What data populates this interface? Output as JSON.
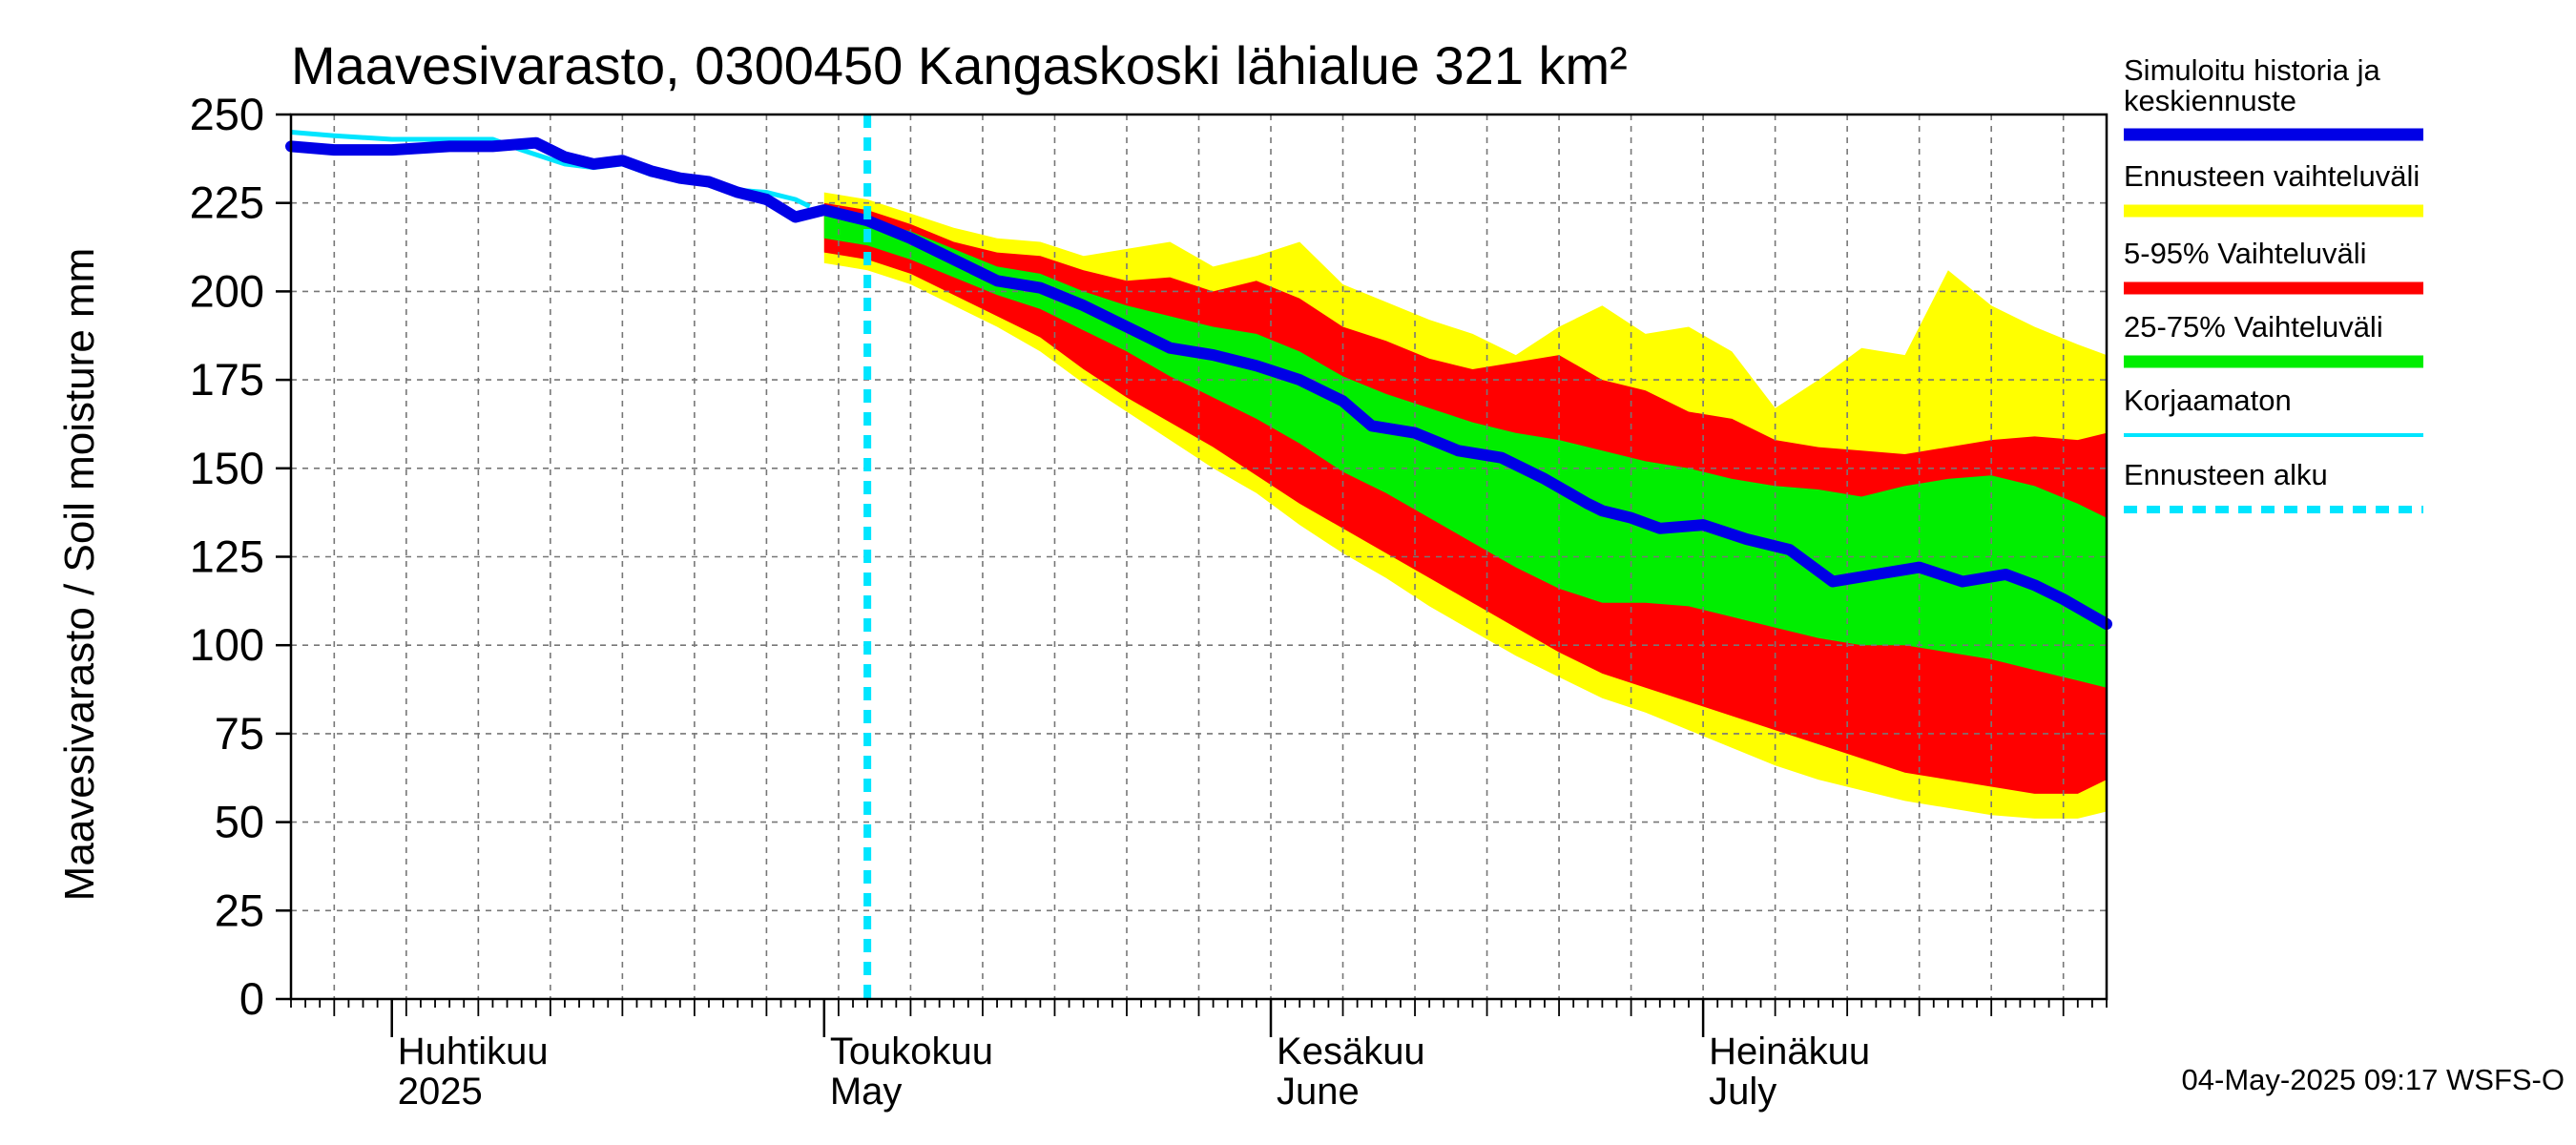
{
  "chart_data": {
    "type": "area",
    "title": "Maavesivarasto, 0300450 Kangaskoski lähialue 321 km²",
    "ylabel": "Maavesivarasto / Soil moisture   mm",
    "ylim": [
      0,
      250
    ],
    "yticks": [
      0,
      25,
      50,
      75,
      100,
      125,
      150,
      175,
      200,
      225,
      250
    ],
    "x_range": [
      "2025-03-25",
      "2025-07-29"
    ],
    "month_labels": [
      {
        "date": "2025-04-01",
        "fi": "Huhtikuu",
        "en": "2025"
      },
      {
        "date": "2025-05-01",
        "fi": "Toukokuu",
        "en": "May"
      },
      {
        "date": "2025-06-01",
        "fi": "Kesäkuu",
        "en": "June"
      },
      {
        "date": "2025-07-01",
        "fi": "Heinäkuu",
        "en": "July"
      }
    ],
    "forecast_start": "2025-05-04",
    "colors": {
      "history": "#0000e6",
      "range": "#ffff00",
      "p5_95": "#ff0000",
      "p25_75": "#00ee00",
      "uncorrected": "#00e5ff",
      "forecast_start": "#00e5ff"
    },
    "series": [
      {
        "name": "Simuloitu historia ja keskiennuste",
        "points": [
          [
            "2025-03-25",
            241
          ],
          [
            "2025-03-28",
            240
          ],
          [
            "2025-04-01",
            240
          ],
          [
            "2025-04-05",
            241
          ],
          [
            "2025-04-08",
            241
          ],
          [
            "2025-04-11",
            242
          ],
          [
            "2025-04-13",
            238
          ],
          [
            "2025-04-15",
            236
          ],
          [
            "2025-04-17",
            237
          ],
          [
            "2025-04-19",
            234
          ],
          [
            "2025-04-21",
            232
          ],
          [
            "2025-04-23",
            231
          ],
          [
            "2025-04-25",
            228
          ],
          [
            "2025-04-27",
            226
          ],
          [
            "2025-04-29",
            221
          ],
          [
            "2025-05-01",
            223
          ],
          [
            "2025-05-04",
            220
          ],
          [
            "2025-05-07",
            215
          ],
          [
            "2025-05-10",
            209
          ],
          [
            "2025-05-13",
            203
          ],
          [
            "2025-05-16",
            201
          ],
          [
            "2025-05-19",
            196
          ],
          [
            "2025-05-22",
            190
          ],
          [
            "2025-05-25",
            184
          ],
          [
            "2025-05-28",
            182
          ],
          [
            "2025-05-31",
            179
          ],
          [
            "2025-06-03",
            175
          ],
          [
            "2025-06-06",
            169
          ],
          [
            "2025-06-08",
            162
          ],
          [
            "2025-06-11",
            160
          ],
          [
            "2025-06-14",
            155
          ],
          [
            "2025-06-17",
            153
          ],
          [
            "2025-06-20",
            147
          ],
          [
            "2025-06-23",
            140
          ],
          [
            "2025-06-24",
            138
          ],
          [
            "2025-06-26",
            136
          ],
          [
            "2025-06-28",
            133
          ],
          [
            "2025-07-01",
            134
          ],
          [
            "2025-07-04",
            130
          ],
          [
            "2025-07-07",
            127
          ],
          [
            "2025-07-10",
            118
          ],
          [
            "2025-07-13",
            120
          ],
          [
            "2025-07-16",
            122
          ],
          [
            "2025-07-19",
            118
          ],
          [
            "2025-07-22",
            120
          ],
          [
            "2025-07-24",
            117
          ],
          [
            "2025-07-26",
            113
          ],
          [
            "2025-07-29",
            106
          ]
        ]
      },
      {
        "name": "Korjaamaton",
        "points": [
          [
            "2025-03-25",
            245
          ],
          [
            "2025-03-28",
            244
          ],
          [
            "2025-04-01",
            243
          ],
          [
            "2025-04-05",
            243
          ],
          [
            "2025-04-08",
            243
          ],
          [
            "2025-04-10",
            240
          ],
          [
            "2025-04-13",
            236
          ],
          [
            "2025-04-15",
            235
          ],
          [
            "2025-04-17",
            236
          ],
          [
            "2025-04-19",
            233
          ],
          [
            "2025-04-21",
            232
          ],
          [
            "2025-04-24",
            229
          ],
          [
            "2025-04-27",
            228
          ],
          [
            "2025-04-29",
            226
          ],
          [
            "2025-04-30",
            224
          ]
        ]
      }
    ],
    "bands": [
      {
        "name": "Ennusteen vaihteluväli",
        "x": [
          "2025-05-01",
          "2025-05-04",
          "2025-05-07",
          "2025-05-10",
          "2025-05-13",
          "2025-05-16",
          "2025-05-19",
          "2025-05-22",
          "2025-05-25",
          "2025-05-28",
          "2025-05-31",
          "2025-06-03",
          "2025-06-06",
          "2025-06-09",
          "2025-06-12",
          "2025-06-15",
          "2025-06-18",
          "2025-06-21",
          "2025-06-24",
          "2025-06-27",
          "2025-06-30",
          "2025-07-03",
          "2025-07-06",
          "2025-07-09",
          "2025-07-12",
          "2025-07-15",
          "2025-07-18",
          "2025-07-21",
          "2025-07-24",
          "2025-07-27",
          "2025-07-29"
        ],
        "upper": [
          228,
          226,
          222,
          218,
          215,
          214,
          210,
          212,
          214,
          207,
          210,
          214,
          202,
          197,
          192,
          188,
          182,
          190,
          196,
          188,
          190,
          183,
          167,
          175,
          184,
          182,
          206,
          196,
          190,
          185,
          182
        ],
        "lower": [
          208,
          206,
          202,
          196,
          190,
          183,
          174,
          166,
          158,
          150,
          143,
          134,
          126,
          119,
          111,
          104,
          97,
          91,
          85,
          81,
          76,
          71,
          66,
          62,
          59,
          56,
          54,
          52,
          51,
          51,
          53
        ]
      },
      {
        "name": "5-95% Vaihteluväli",
        "x": [
          "2025-05-01",
          "2025-05-04",
          "2025-05-07",
          "2025-05-10",
          "2025-05-13",
          "2025-05-16",
          "2025-05-19",
          "2025-05-22",
          "2025-05-25",
          "2025-05-28",
          "2025-05-31",
          "2025-06-03",
          "2025-06-06",
          "2025-06-09",
          "2025-06-12",
          "2025-06-15",
          "2025-06-18",
          "2025-06-21",
          "2025-06-24",
          "2025-06-27",
          "2025-06-30",
          "2025-07-03",
          "2025-07-06",
          "2025-07-09",
          "2025-07-12",
          "2025-07-15",
          "2025-07-18",
          "2025-07-21",
          "2025-07-24",
          "2025-07-27",
          "2025-07-29"
        ],
        "upper": [
          225,
          223,
          219,
          214,
          211,
          210,
          206,
          203,
          204,
          200,
          203,
          198,
          190,
          186,
          181,
          178,
          180,
          182,
          175,
          172,
          166,
          164,
          158,
          156,
          155,
          154,
          156,
          158,
          159,
          158,
          160
        ],
        "lower": [
          211,
          209,
          205,
          199,
          193,
          187,
          178,
          170,
          163,
          156,
          148,
          140,
          133,
          126,
          119,
          112,
          105,
          98,
          92,
          88,
          84,
          80,
          76,
          72,
          68,
          64,
          62,
          60,
          58,
          58,
          62
        ]
      },
      {
        "name": "25-75% Vaihteluväli",
        "x": [
          "2025-05-01",
          "2025-05-04",
          "2025-05-07",
          "2025-05-10",
          "2025-05-13",
          "2025-05-16",
          "2025-05-19",
          "2025-05-22",
          "2025-05-25",
          "2025-05-28",
          "2025-05-31",
          "2025-06-03",
          "2025-06-06",
          "2025-06-09",
          "2025-06-12",
          "2025-06-15",
          "2025-06-18",
          "2025-06-21",
          "2025-06-24",
          "2025-06-27",
          "2025-06-30",
          "2025-07-03",
          "2025-07-06",
          "2025-07-09",
          "2025-07-12",
          "2025-07-15",
          "2025-07-18",
          "2025-07-21",
          "2025-07-24",
          "2025-07-27",
          "2025-07-29"
        ],
        "upper": [
          222,
          220,
          217,
          212,
          207,
          205,
          200,
          196,
          193,
          190,
          188,
          183,
          176,
          171,
          167,
          163,
          160,
          158,
          155,
          152,
          150,
          147,
          145,
          144,
          142,
          145,
          147,
          148,
          145,
          140,
          136
        ],
        "lower": [
          215,
          213,
          209,
          204,
          199,
          195,
          189,
          183,
          176,
          170,
          164,
          157,
          149,
          143,
          136,
          129,
          122,
          116,
          112,
          112,
          111,
          108,
          105,
          102,
          100,
          100,
          98,
          96,
          93,
          90,
          88
        ]
      }
    ],
    "legend": [
      {
        "label": "Simuloitu historia ja keskiennuste",
        "color": "#0000e6",
        "style": "thick"
      },
      {
        "label": "Ennusteen vaihteluväli",
        "color": "#ffff00",
        "style": "thick"
      },
      {
        "label": "5-95% Vaihteluväli",
        "color": "#ff0000",
        "style": "thick"
      },
      {
        "label": "25-75% Vaihteluväli",
        "color": "#00ee00",
        "style": "thick"
      },
      {
        "label": "Korjaamaton",
        "color": "#00e5ff",
        "style": "thin"
      },
      {
        "label": "Ennusteen alku",
        "color": "#00e5ff",
        "style": "dashed"
      }
    ],
    "grid": true,
    "legend_position": "right"
  },
  "footer": "04-May-2025 09:17 WSFS-O"
}
